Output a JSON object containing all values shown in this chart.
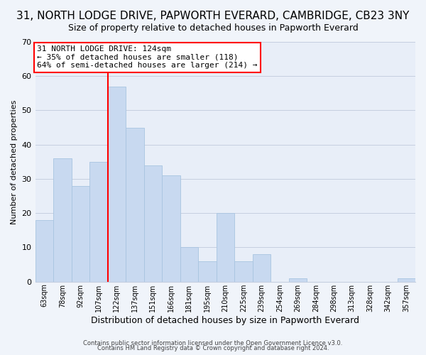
{
  "title": "31, NORTH LODGE DRIVE, PAPWORTH EVERARD, CAMBRIDGE, CB23 3NY",
  "subtitle": "Size of property relative to detached houses in Papworth Everard",
  "xlabel": "Distribution of detached houses by size in Papworth Everard",
  "ylabel": "Number of detached properties",
  "footer_line1": "Contains HM Land Registry data © Crown copyright and database right 2024.",
  "footer_line2": "Contains public sector information licensed under the Open Government Licence v3.0.",
  "bin_labels": [
    "63sqm",
    "78sqm",
    "92sqm",
    "107sqm",
    "122sqm",
    "137sqm",
    "151sqm",
    "166sqm",
    "181sqm",
    "195sqm",
    "210sqm",
    "225sqm",
    "239sqm",
    "254sqm",
    "269sqm",
    "284sqm",
    "298sqm",
    "313sqm",
    "328sqm",
    "342sqm",
    "357sqm"
  ],
  "bar_heights": [
    18,
    36,
    28,
    35,
    57,
    45,
    34,
    31,
    10,
    6,
    20,
    6,
    8,
    0,
    1,
    0,
    0,
    0,
    0,
    0,
    1
  ],
  "bar_color": "#c8d9f0",
  "bar_edge_color": "#a8c4e0",
  "highlight_line_color": "red",
  "highlight_bar_index": 4,
  "annotation_text_line1": "31 NORTH LODGE DRIVE: 124sqm",
  "annotation_text_line2": "← 35% of detached houses are smaller (118)",
  "annotation_text_line3": "64% of semi-detached houses are larger (214) →",
  "ylim": [
    0,
    70
  ],
  "yticks": [
    0,
    10,
    20,
    30,
    40,
    50,
    60,
    70
  ],
  "background_color": "#f0f4fa",
  "plot_bg_color": "#e8eef8",
  "grid_color": "#c5cfe0",
  "title_fontsize": 11,
  "subtitle_fontsize": 9
}
